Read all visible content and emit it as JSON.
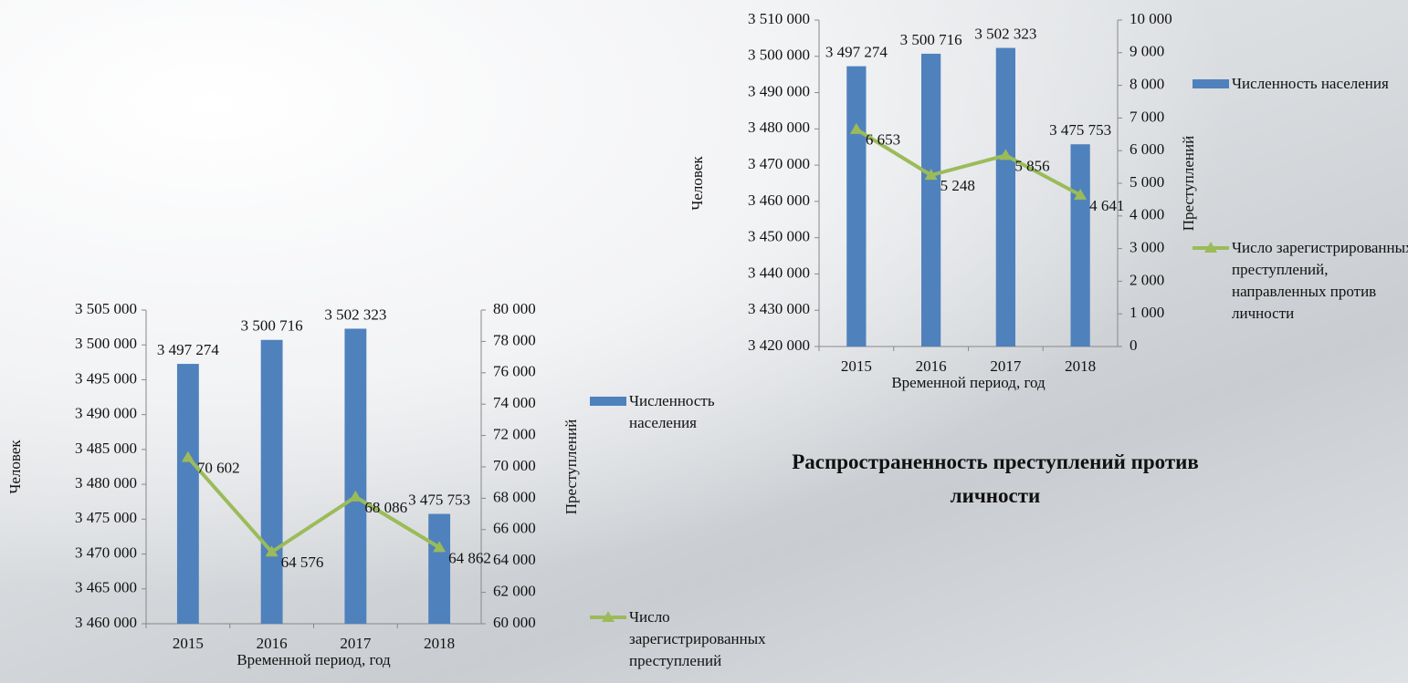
{
  "chart_data": [
    {
      "type": "bar-line",
      "categories": [
        "2015",
        "2016",
        "2017",
        "2018"
      ],
      "xlabel": "Временной период, год",
      "ylabel": "Человек",
      "y2label": "Преступлений",
      "series": [
        {
          "name": "Численность населения",
          "color": "#4f81bd",
          "type": "bar",
          "values": [
            3497274,
            3500716,
            3502323,
            3475753
          ],
          "value_labels": [
            "3 497 274",
            "3 500 716",
            "3 502 323",
            "3 475 753"
          ]
        },
        {
          "name": "Число зарегистрированных преступлений",
          "color": "#9bbb59",
          "type": "line",
          "axis": "y2",
          "values": [
            70602,
            64576,
            68086,
            64862
          ],
          "value_labels": [
            "70 602",
            "64 576",
            "68 086",
            "64 862"
          ]
        }
      ],
      "ylim": [
        3460000,
        3505000
      ],
      "yticks": [
        {
          "value": 3460000,
          "label": "3 460 000"
        },
        {
          "value": 3465000,
          "label": "3 465 000"
        },
        {
          "value": 3470000,
          "label": "3 470 000"
        },
        {
          "value": 3475000,
          "label": "3 475 000"
        },
        {
          "value": 3480000,
          "label": "3 480 000"
        },
        {
          "value": 3485000,
          "label": "3 485 000"
        },
        {
          "value": 3490000,
          "label": "3 490 000"
        },
        {
          "value": 3495000,
          "label": "3 495 000"
        },
        {
          "value": 3500000,
          "label": "3 500 000"
        },
        {
          "value": 3505000,
          "label": "3 505 000"
        }
      ],
      "y2lim": [
        60000,
        80000
      ],
      "y2ticks": [
        {
          "value": 60000,
          "label": "60 000"
        },
        {
          "value": 62000,
          "label": "62 000"
        },
        {
          "value": 64000,
          "label": "64 000"
        },
        {
          "value": 66000,
          "label": "66 000"
        },
        {
          "value": 68000,
          "label": "68 000"
        },
        {
          "value": 70000,
          "label": "70 000"
        },
        {
          "value": 72000,
          "label": "72 000"
        },
        {
          "value": 74000,
          "label": "74 000"
        },
        {
          "value": 76000,
          "label": "76 000"
        },
        {
          "value": 78000,
          "label": "78 000"
        },
        {
          "value": 80000,
          "label": "80 000"
        }
      ],
      "legend": "right"
    },
    {
      "type": "bar-line",
      "categories": [
        "2015",
        "2016",
        "2017",
        "2018"
      ],
      "xlabel": "Временной период, год",
      "ylabel": "Человек",
      "y2label": "Преступлений",
      "series": [
        {
          "name": "Численность населения",
          "color": "#4f81bd",
          "type": "bar",
          "values": [
            3497274,
            3500716,
            3502323,
            3475753
          ],
          "value_labels": [
            "3 497 274",
            "3 500 716",
            "3 502 323",
            "3 475 753"
          ]
        },
        {
          "name": "Число зарегистрированных преступлений, направленных против личности",
          "color": "#9bbb59",
          "type": "line",
          "axis": "y2",
          "values": [
            6653,
            5248,
            5856,
            4641
          ],
          "value_labels": [
            "6 653",
            "5 248",
            "5 856",
            "4 641"
          ]
        }
      ],
      "ylim": [
        3420000,
        3510000
      ],
      "yticks": [
        {
          "value": 3420000,
          "label": "3 420 000"
        },
        {
          "value": 3430000,
          "label": "3 430 000"
        },
        {
          "value": 3440000,
          "label": "3 440 000"
        },
        {
          "value": 3450000,
          "label": "3 450 000"
        },
        {
          "value": 3460000,
          "label": "3 460 000"
        },
        {
          "value": 3470000,
          "label": "3 470 000"
        },
        {
          "value": 3480000,
          "label": "3 480 000"
        },
        {
          "value": 3490000,
          "label": "3 490 000"
        },
        {
          "value": 3500000,
          "label": "3 500 000"
        },
        {
          "value": 3510000,
          "label": "3 510 000"
        }
      ],
      "y2lim": [
        0,
        10000
      ],
      "y2ticks": [
        0,
        {
          "value": 1000,
          "label": "1 000"
        },
        {
          "value": 2000,
          "label": "2 000"
        },
        {
          "value": 3000,
          "label": "3 000"
        },
        {
          "value": 4000,
          "label": "4 000"
        },
        {
          "value": 5000,
          "label": "5 000"
        },
        {
          "value": 6000,
          "label": "6 000"
        },
        {
          "value": 7000,
          "label": "7 000"
        },
        {
          "value": 8000,
          "label": "8 000"
        },
        {
          "value": 9000,
          "label": "9 000"
        },
        {
          "value": 10000,
          "label": "10 000"
        }
      ],
      "legend": "right"
    }
  ],
  "caption": "Распространенность преступлений против личности"
}
